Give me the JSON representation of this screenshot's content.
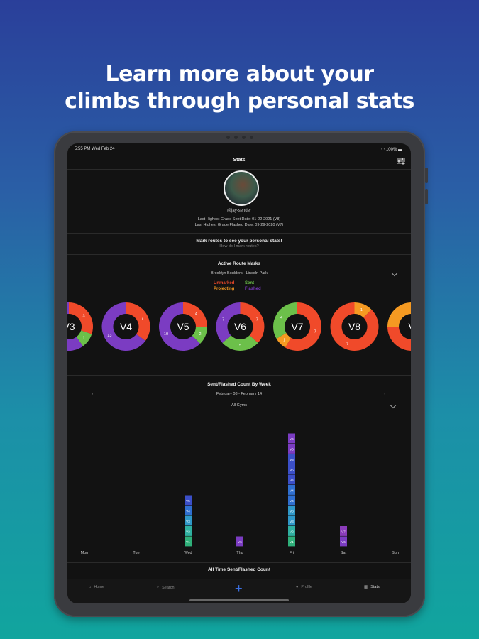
{
  "headline": {
    "line1": "Learn more about your",
    "line2": "climbs through personal stats"
  },
  "status_bar": {
    "time": "5:55 PM",
    "date": "Wed Feb 24",
    "battery": "100%"
  },
  "nav": {
    "title": "Stats",
    "filter_icon": "sliders-icon"
  },
  "profile": {
    "username": "@jay-sender",
    "last_highest_sent": "Last Highest Grade Sent Date: 01-22-2021 (V8)",
    "last_highest_flashed": "Last Highest Grade Flashed Date: 09-29-2020 (V7)"
  },
  "mark_prompt": {
    "title": "Mark routes to see your personal stats!",
    "link": "How do I mark routes?"
  },
  "active_route_marks": {
    "title": "Active Route Marks",
    "gym": "Brooklyn Boulders - Lincoln Park",
    "legend": [
      {
        "label": "Unmarked",
        "color": "#f04a2a"
      },
      {
        "label": "Sent",
        "color": "#6cc04a"
      },
      {
        "label": "Projecting",
        "color": "#f59a22"
      },
      {
        "label": "Flashed",
        "color": "#7b3cc2"
      }
    ]
  },
  "colors": {
    "unmarked": "#f04a2a",
    "sent": "#6cc04a",
    "projecting": "#f59a22",
    "flashed": "#7b3cc2",
    "accent": "#3b6fe0"
  },
  "donuts": [
    {
      "grade": "V3",
      "segments": [
        {
          "type": "unmarked",
          "value": 3,
          "label": "3"
        },
        {
          "type": "sent",
          "value": 1,
          "label": "1"
        },
        {
          "type": "flashed",
          "value": 6,
          "label": ""
        }
      ]
    },
    {
      "grade": "V4",
      "segments": [
        {
          "type": "unmarked",
          "value": 7,
          "label": "7"
        },
        {
          "type": "flashed",
          "value": 13,
          "label": "13"
        }
      ]
    },
    {
      "grade": "V5",
      "segments": [
        {
          "type": "unmarked",
          "value": 4,
          "label": "4"
        },
        {
          "type": "sent",
          "value": 2,
          "label": "2"
        },
        {
          "type": "flashed",
          "value": 10,
          "label": "10"
        }
      ]
    },
    {
      "grade": "V6",
      "segments": [
        {
          "type": "unmarked",
          "value": 7,
          "label": "7"
        },
        {
          "type": "sent",
          "value": 5,
          "label": "5"
        },
        {
          "type": "flashed",
          "value": 7,
          "label": "7"
        }
      ]
    },
    {
      "grade": "V7",
      "segments": [
        {
          "type": "unmarked",
          "value": 7,
          "label": "7"
        },
        {
          "type": "projecting",
          "value": 1,
          "label": "1"
        },
        {
          "type": "sent",
          "value": 4,
          "label": "4"
        }
      ]
    },
    {
      "grade": "V8",
      "segments": [
        {
          "type": "projecting",
          "value": 1,
          "label": "1"
        },
        {
          "type": "unmarked",
          "value": 7,
          "label": "7"
        }
      ]
    },
    {
      "grade": "V",
      "segments": [
        {
          "type": "unmarked",
          "value": 6,
          "label": ""
        },
        {
          "type": "projecting",
          "value": 2,
          "label": ""
        }
      ]
    }
  ],
  "weekly": {
    "title": "Sent/Flashed Count By Week",
    "range": "February 08 - February 14",
    "gym": "All Gyms"
  },
  "chart_data": {
    "type": "bar",
    "title": "Sent/Flashed Count By Week",
    "categories": [
      "Mon",
      "Tue",
      "Wed",
      "Thu",
      "Fri",
      "Sat",
      "Sun"
    ],
    "stacks": [
      [],
      [],
      [
        {
          "grade": "V1",
          "color": "#2fb07a"
        },
        {
          "grade": "V2",
          "color": "#2fb0a0"
        },
        {
          "grade": "V3",
          "color": "#2f98c8"
        },
        {
          "grade": "V4",
          "color": "#2f6fd0"
        },
        {
          "grade": "V5",
          "color": "#3b4fc8"
        }
      ],
      [
        {
          "grade": "V6",
          "color": "#7b3cc2"
        }
      ],
      [
        {
          "grade": "V1",
          "color": "#2fb07a"
        },
        {
          "grade": "V2",
          "color": "#2fb0a0"
        },
        {
          "grade": "V3",
          "color": "#2f98c8"
        },
        {
          "grade": "V3",
          "color": "#2f98c8"
        },
        {
          "grade": "V4",
          "color": "#2f6fd0"
        },
        {
          "grade": "V4",
          "color": "#2f6fd0"
        },
        {
          "grade": "V5",
          "color": "#3b4fc8"
        },
        {
          "grade": "V5",
          "color": "#3b4fc8"
        },
        {
          "grade": "V5",
          "color": "#3b4fc8"
        },
        {
          "grade": "V6",
          "color": "#7b3cc2"
        },
        {
          "grade": "V6",
          "color": "#7b3cc2"
        }
      ],
      [
        {
          "grade": "V6",
          "color": "#7b3cc2"
        },
        {
          "grade": "V7",
          "color": "#8a3cba"
        }
      ],
      []
    ]
  },
  "all_time": {
    "title": "All Time Sent/Flashed Count"
  },
  "tabs": [
    {
      "label": "Home",
      "icon": "home-icon"
    },
    {
      "label": "Search",
      "icon": "search-icon"
    },
    {
      "label": "Profile",
      "icon": "person-icon"
    },
    {
      "label": "Stats",
      "icon": "bar-chart-icon"
    }
  ]
}
